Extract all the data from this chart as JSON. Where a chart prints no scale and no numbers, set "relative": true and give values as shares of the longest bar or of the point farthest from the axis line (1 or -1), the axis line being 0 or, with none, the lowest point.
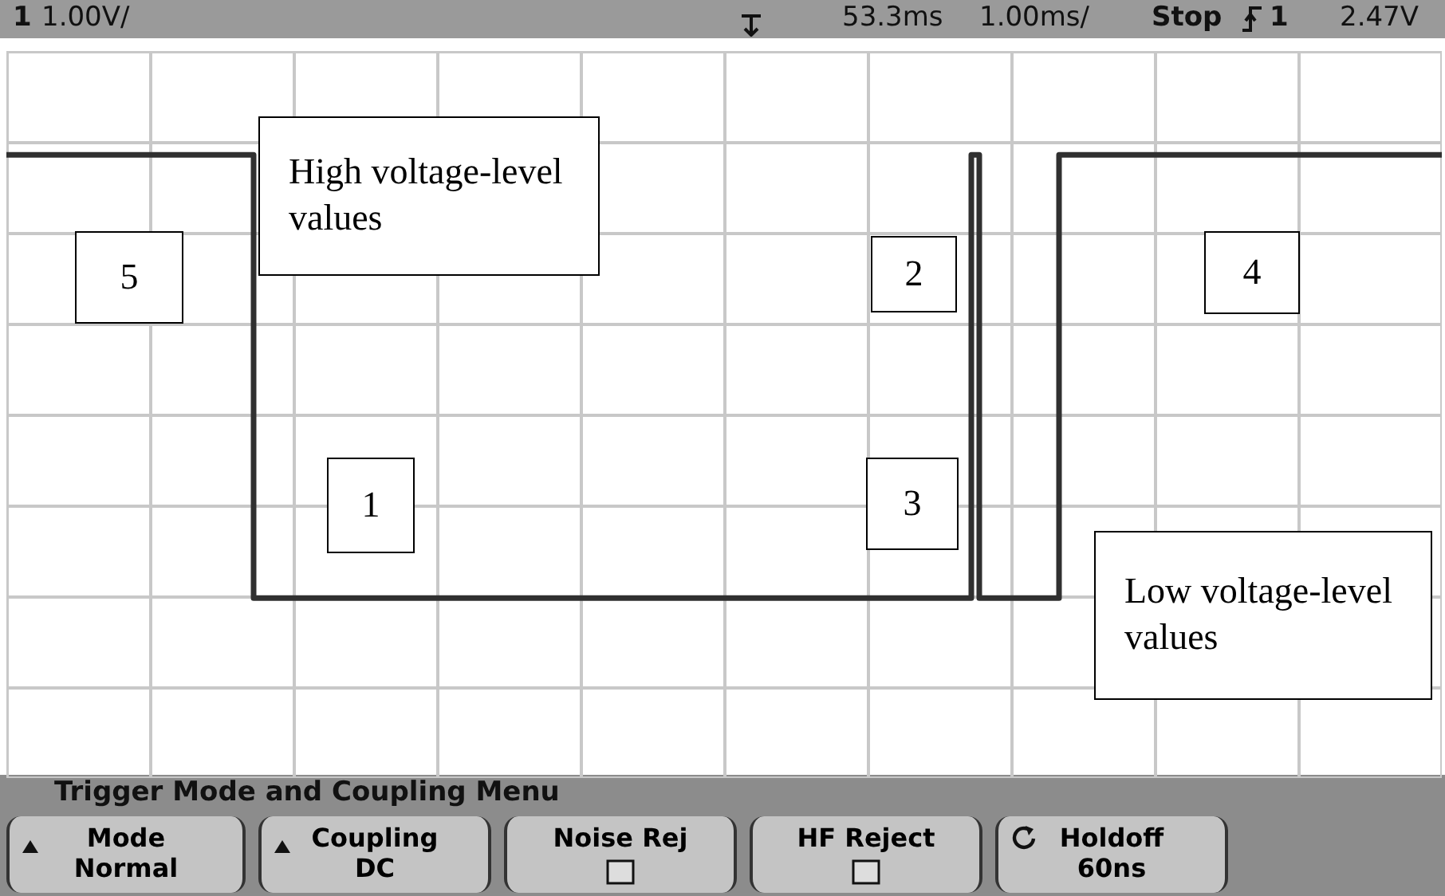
{
  "chart_data": {
    "type": "step",
    "relative": true,
    "grid": true,
    "marker": "none",
    "line_style": "solid",
    "categories": [
      null,
      null,
      null,
      null,
      null,
      null,
      null,
      null,
      null,
      null,
      null,
      null,
      null,
      null,
      null,
      null,
      null,
      null,
      null,
      null,
      null,
      null,
      null,
      null,
      null,
      null,
      null,
      null,
      null,
      null,
      null,
      null,
      null,
      null,
      null,
      null,
      null,
      null,
      null,
      null,
      null,
      null,
      null,
      null,
      null,
      null,
      null,
      null,
      null,
      null,
      null,
      null,
      null,
      null,
      null,
      null,
      null,
      null,
      null,
      null,
      null,
      null,
      null,
      null,
      null,
      null,
      null,
      null,
      null,
      null,
      null,
      null,
      null,
      null,
      null,
      null,
      null,
      null,
      null,
      null,
      null,
      null,
      null,
      null,
      null,
      null,
      null,
      null,
      null,
      null,
      null,
      null,
      null,
      null,
      null,
      null,
      null,
      null,
      null,
      null,
      null,
      null,
      null,
      null,
      null,
      null,
      null,
      null,
      null,
      null,
      null,
      null,
      null,
      null,
      null,
      null,
      null,
      null,
      null,
      null,
      null,
      null,
      null,
      null,
      null,
      null,
      null,
      null,
      null,
      null,
      null,
      null,
      null,
      null,
      null,
      null,
      null,
      null,
      null,
      null,
      null,
      null,
      null,
      null,
      null,
      null,
      null,
      null,
      null,
      null,
      null,
      null,
      null,
      null,
      null,
      null,
      null,
      null,
      null,
      null,
      null,
      null,
      null,
      null,
      null,
      null,
      null,
      null,
      null,
      null,
      null,
      null,
      null,
      null,
      null,
      null,
      null,
      null,
      null,
      null,
      null
    ],
    "series": [
      {
        "color": "#303030",
        "values": [
          1,
          1,
          1,
          1,
          1,
          1,
          1,
          1,
          1,
          1,
          1,
          1,
          1,
          1,
          1,
          1,
          1,
          1,
          1,
          1,
          1,
          1,
          1,
          1,
          1,
          1,
          1,
          1,
          1,
          1,
          1,
          0,
          0,
          0,
          0,
          0,
          0,
          0,
          0,
          0,
          0,
          0,
          0,
          0,
          0,
          0,
          0,
          0,
          0,
          0,
          0,
          0,
          0,
          0,
          0,
          0,
          0,
          0,
          0,
          0,
          0,
          0,
          0,
          0,
          0,
          0,
          0,
          0,
          0,
          0,
          0,
          0,
          0,
          0,
          0,
          0,
          0,
          0,
          0,
          0,
          0,
          0,
          0,
          0,
          0,
          0,
          0,
          0,
          0,
          0,
          0,
          0,
          0,
          0,
          0,
          0,
          0,
          0,
          0,
          0,
          0,
          0,
          0,
          0,
          0,
          0,
          0,
          0,
          0,
          0,
          0,
          0,
          0,
          0,
          0,
          0,
          0,
          0,
          0,
          0,
          0,
          1,
          0,
          0,
          0,
          0,
          0,
          0,
          0,
          0,
          0,
          0,
          1,
          1,
          1,
          1,
          1,
          1,
          1,
          1,
          1,
          1,
          1,
          1,
          1,
          1,
          1,
          1,
          1,
          1,
          1,
          1,
          1,
          1,
          1,
          1,
          1,
          1,
          1,
          1,
          1,
          1,
          1,
          1,
          1,
          1,
          1,
          1,
          1,
          1,
          1,
          1,
          1,
          1,
          1,
          1,
          1,
          1,
          1,
          1,
          1
        ]
      }
    ],
    "annotations": [
      "1",
      "1.00V/",
      "53.3ms",
      "1.00ms/",
      "Stop",
      "1",
      "2.47V",
      "High voltage-level values",
      "5",
      "2",
      "4",
      "1",
      "3",
      "Low voltage-level values",
      "Trigger Mode and Coupling Menu",
      "Mode",
      "Normal",
      "Coupling",
      "DC",
      "Noise Rej",
      "HF Reject",
      "Holdoff",
      "60ns"
    ]
  }
}
